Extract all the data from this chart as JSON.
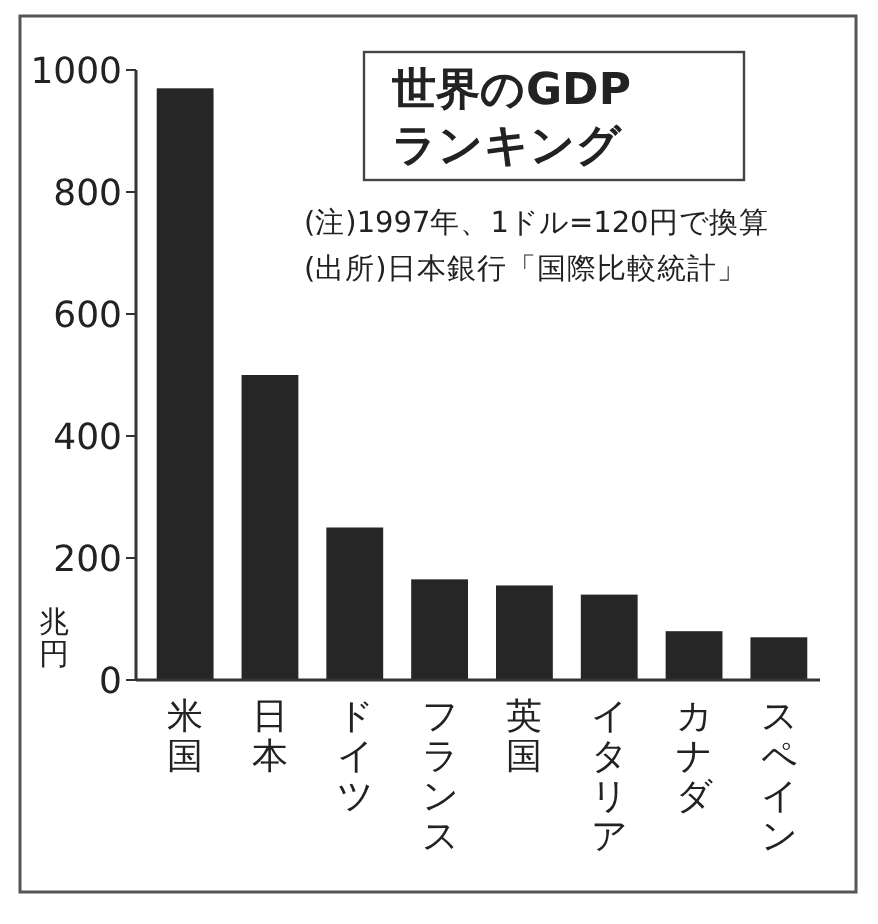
{
  "chart_data": {
    "type": "bar",
    "title": "世界のGDP\nランキング",
    "ylabel": "兆円",
    "categories": [
      "米国",
      "日本",
      "ドイツ",
      "フランス",
      "英国",
      "イタリア",
      "カナダ",
      "スペイン"
    ],
    "values": [
      970,
      500,
      250,
      165,
      155,
      140,
      80,
      70
    ],
    "color": "#262626",
    "ylim": [
      0,
      1000
    ],
    "yticks": [
      0,
      200,
      400,
      600,
      800,
      1000
    ],
    "grid": false,
    "annotations": [
      "(注)1997年、1ドル=120円で換算",
      "(出所)日本銀行「国際比較統計」"
    ]
  }
}
